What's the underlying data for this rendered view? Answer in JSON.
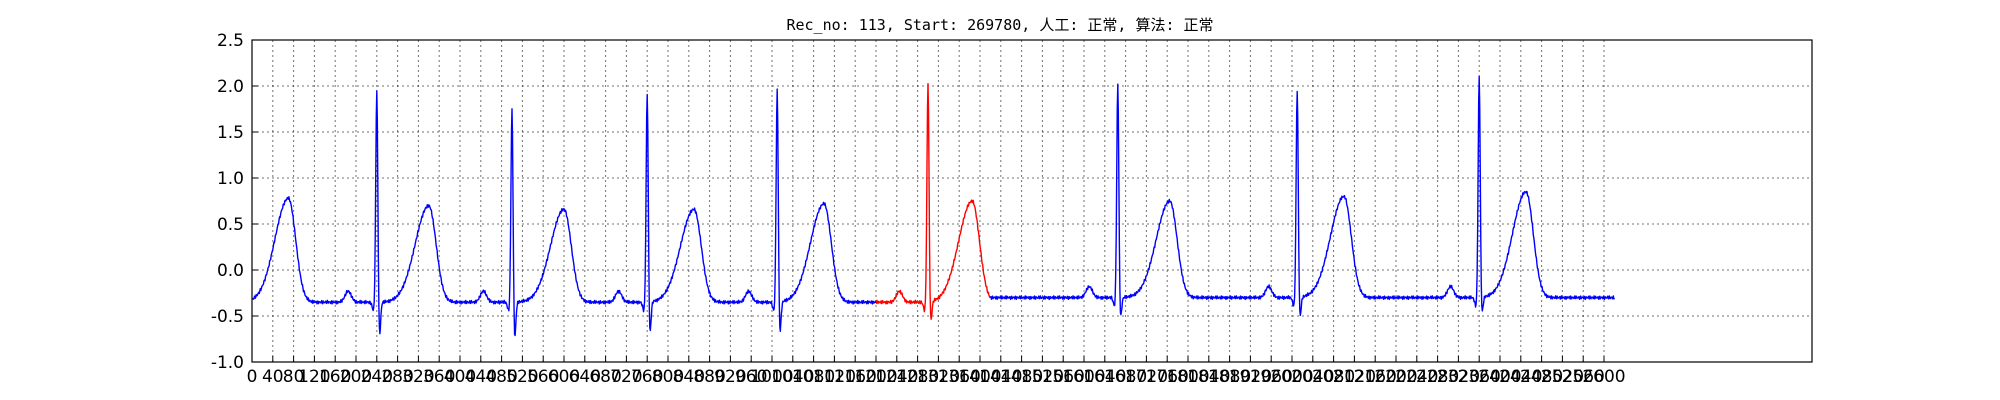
{
  "chart_data": {
    "type": "line",
    "title": "Rec_no: 113, Start: 269780, 人工: 正常, 算法: 正常",
    "xlabel": "",
    "ylabel": "",
    "xlim": [
      0,
      3000
    ],
    "ylim": [
      -1.0,
      2.5
    ],
    "grid": true,
    "yticks": [
      -1.0,
      -0.5,
      0.0,
      0.5,
      1.0,
      1.5,
      2.0,
      2.5
    ],
    "xticks": [
      0,
      40,
      80,
      120,
      160,
      200,
      240,
      280,
      320,
      360,
      400,
      440,
      480,
      520,
      560,
      600,
      640,
      680,
      720,
      760,
      800,
      840,
      880,
      920,
      960,
      1000,
      1040,
      1080,
      1120,
      1160,
      1200,
      1240,
      1280,
      1320,
      1360,
      1400,
      1440,
      1480,
      1520,
      1560,
      1600,
      1640,
      1680,
      1720,
      1760,
      1800,
      1840,
      1880,
      1920,
      1960,
      2000,
      2040,
      2080,
      2120,
      2160,
      2200,
      2240,
      2280,
      2320,
      2360,
      2400,
      2440,
      2480,
      2520,
      2560,
      2600
    ],
    "series": [
      {
        "color": "#0000ff",
        "segment": "before",
        "x_range": [
          0,
          1200
        ],
        "beats": [
          {
            "r_x": 240,
            "r_peak": 1.98,
            "s_min": -0.75,
            "t_x": 70,
            "t_peak": 0.78
          },
          {
            "r_x": 500,
            "r_peak": 1.78,
            "s_min": -0.78,
            "t_x": 340,
            "t_peak": 0.7
          },
          {
            "r_x": 760,
            "r_peak": 1.95,
            "s_min": -0.73,
            "t_x": 600,
            "t_peak": 0.66
          },
          {
            "r_x": 1010,
            "r_peak": 1.98,
            "s_min": -0.72,
            "t_x": 850,
            "t_peak": 0.66
          },
          {
            "r_x": null,
            "r_peak": null,
            "s_min": null,
            "t_x": 1100,
            "t_peak": 0.72
          }
        ],
        "baseline": -0.35
      },
      {
        "color": "#ff0000",
        "segment": "highlighted",
        "x_range": [
          1200,
          1420
        ],
        "beats": [
          {
            "r_x": 1300,
            "r_peak": 2.05,
            "s_min": -0.6,
            "t_x": 1385,
            "t_peak": 0.75
          }
        ],
        "baseline": -0.35
      },
      {
        "color": "#0000ff",
        "segment": "after",
        "x_range": [
          1420,
          2620
        ],
        "beats": [
          {
            "r_x": 1665,
            "r_peak": 2.05,
            "s_min": -0.55,
            "t_x": 1765,
            "t_peak": 0.75
          },
          {
            "r_x": 2010,
            "r_peak": 1.98,
            "s_min": -0.55,
            "t_x": 2100,
            "t_peak": 0.8
          },
          {
            "r_x": 2360,
            "r_peak": 2.12,
            "s_min": -0.5,
            "t_x": 2450,
            "t_peak": 0.85
          }
        ],
        "baseline": -0.3,
        "end_value": -0.28
      }
    ]
  }
}
